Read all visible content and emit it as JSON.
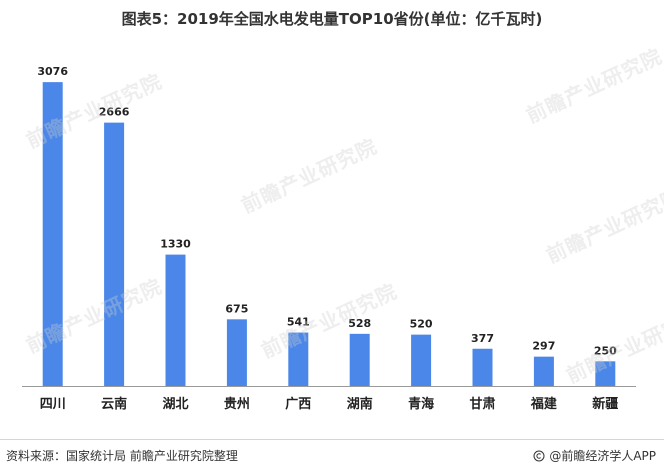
{
  "title": "图表5：2019年全国水电发电量TOP10省份(单位：亿千瓦时)",
  "colors": {
    "bar": "#4a87e8",
    "axis": "#9a9a9a",
    "text": "#222222"
  },
  "chart_data": {
    "type": "bar",
    "title": "图表5：2019年全国水电发电量TOP10省份(单位：亿千瓦时)",
    "categories": [
      "四川",
      "云南",
      "湖北",
      "贵州",
      "广西",
      "湖南",
      "青海",
      "甘肃",
      "福建",
      "新疆"
    ],
    "values": [
      3076,
      2666,
      1330,
      675,
      541,
      528,
      520,
      377,
      297,
      250
    ],
    "data_labels": [
      "3076",
      "2666",
      "1330",
      "675",
      "541",
      "528",
      "520",
      "377",
      "297",
      "250"
    ],
    "ylim": [
      0,
      3300
    ],
    "grid": false,
    "legend": "none"
  },
  "watermark": {
    "text": "前瞻产业研究院"
  },
  "footer": {
    "source": "资料来源：国家统计局 前瞻产业研究院整理",
    "brand": "@前瞻经济学人APP",
    "brand_icon": "copyright-icon"
  }
}
